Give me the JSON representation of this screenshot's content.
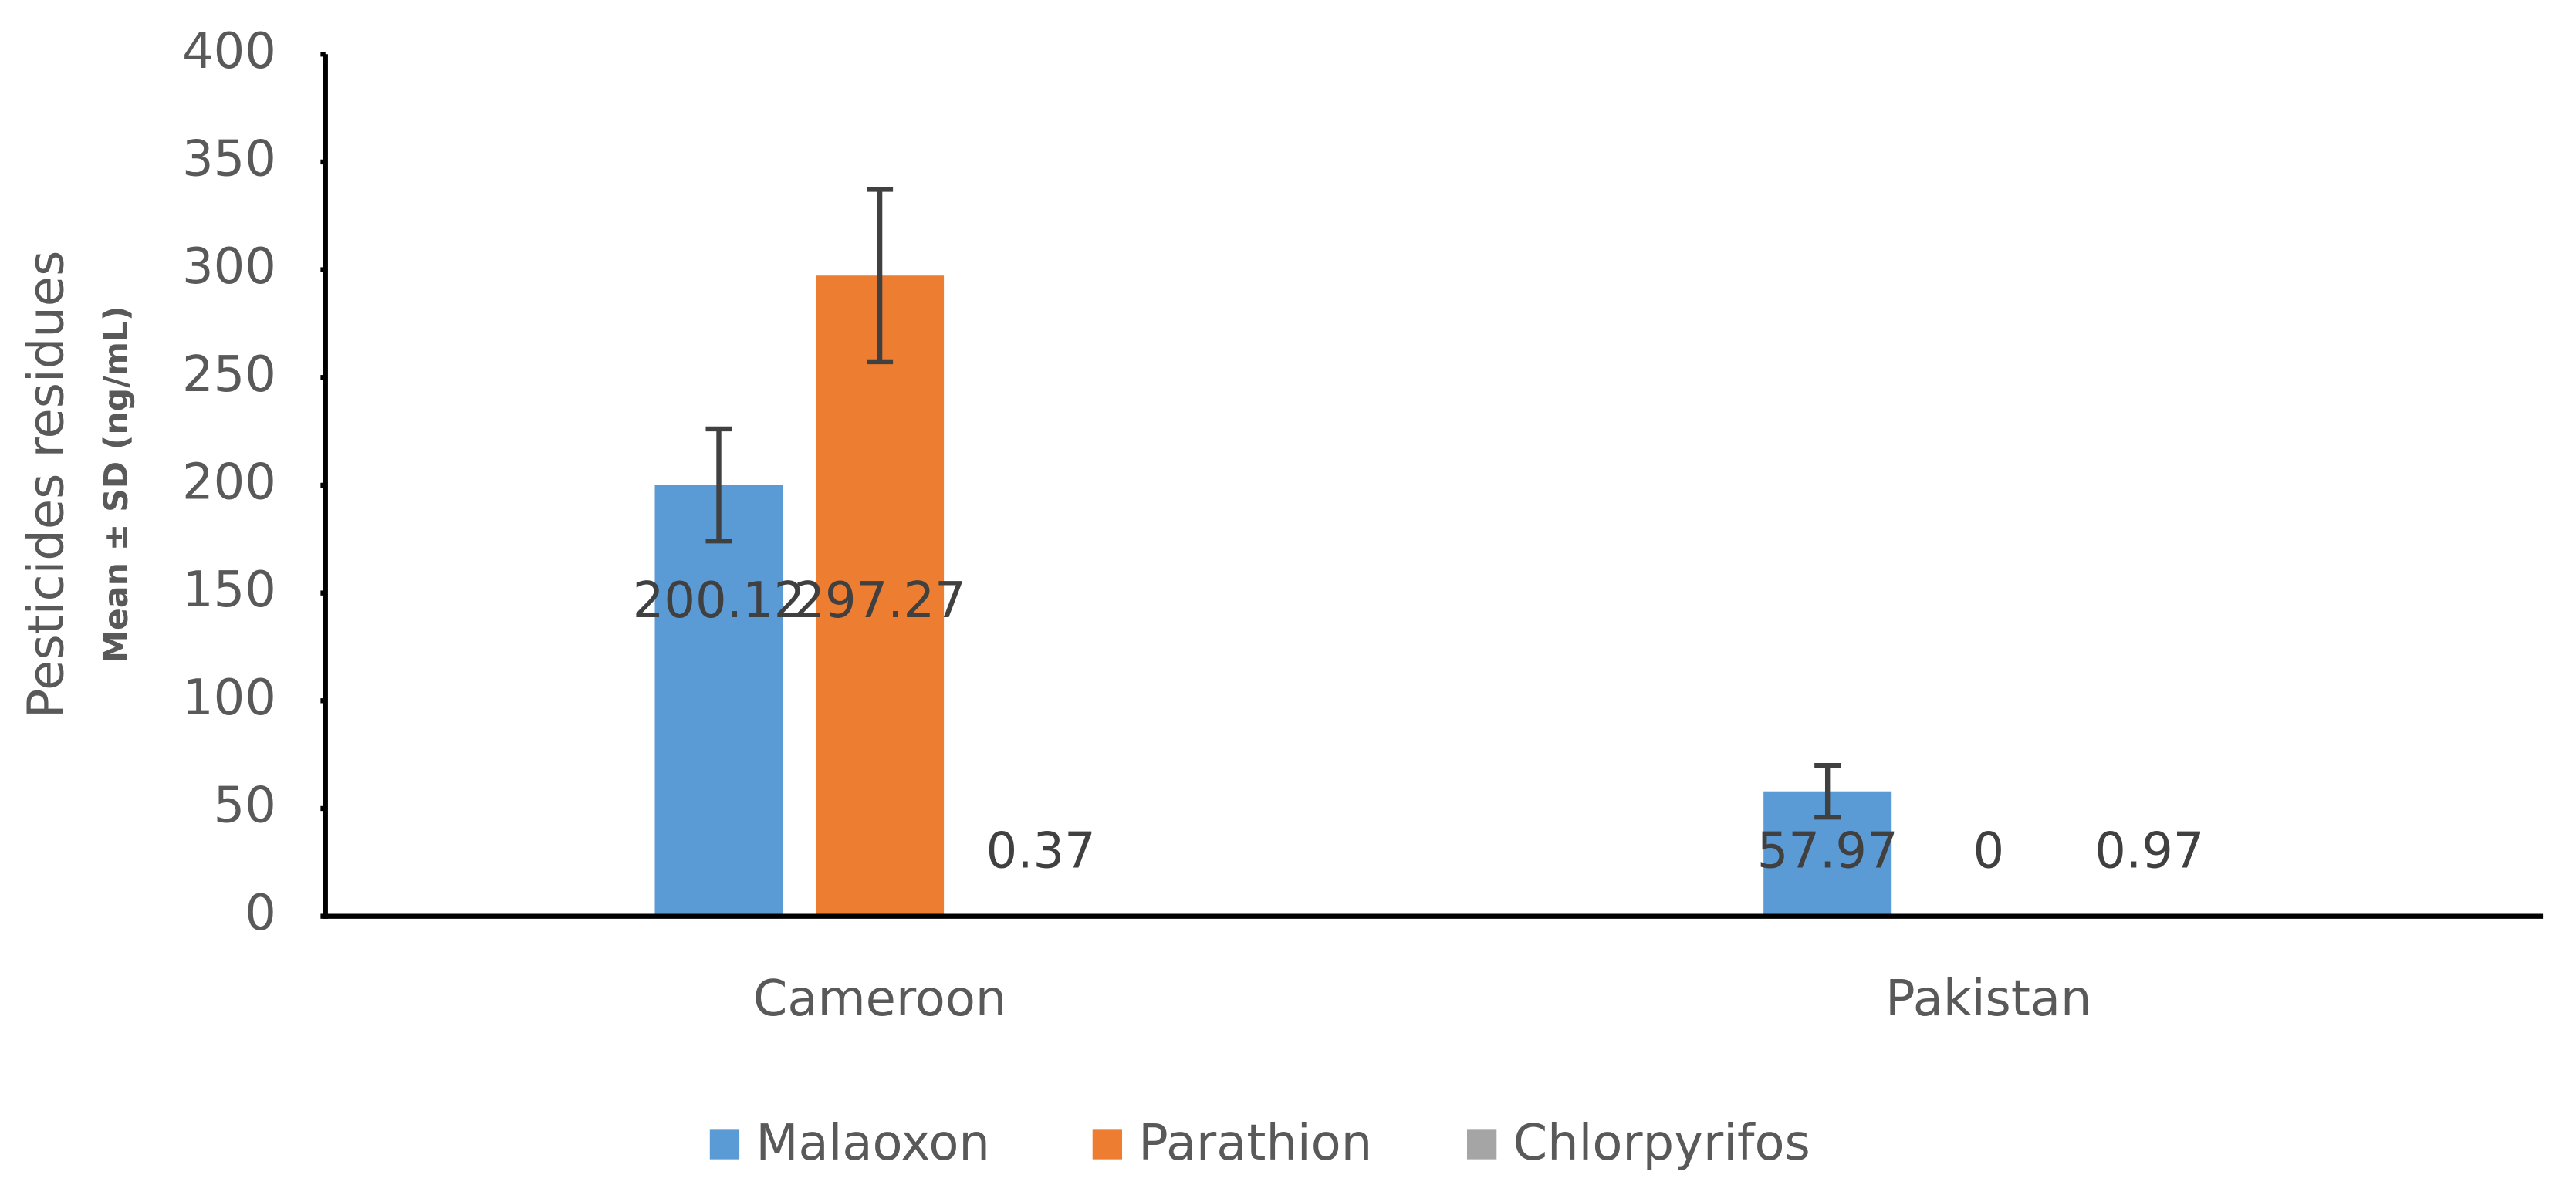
{
  "chart_data": {
    "type": "bar",
    "y_label": "Pesticides residues",
    "y_sublabel": "Mean ± SD (ng/mL)",
    "categories": [
      "Cameroon",
      "Pakistan"
    ],
    "series": [
      {
        "name": "Malaoxon",
        "color": "#5b9bd5",
        "values": [
          200.12,
          57.97
        ],
        "errors": [
          26,
          12
        ]
      },
      {
        "name": "Parathion",
        "color": "#ed7d31",
        "values": [
          297.27,
          0
        ],
        "errors": [
          40,
          null
        ]
      },
      {
        "name": "Chlorpyrifos",
        "color": "#a5a5a5",
        "values": [
          0.37,
          0.97
        ],
        "errors": [
          null,
          null
        ]
      }
    ],
    "ylim": [
      0,
      400
    ],
    "yticks": [
      0,
      50,
      100,
      150,
      200,
      250,
      300,
      350,
      400
    ],
    "grid": false,
    "legend": "bottom"
  }
}
